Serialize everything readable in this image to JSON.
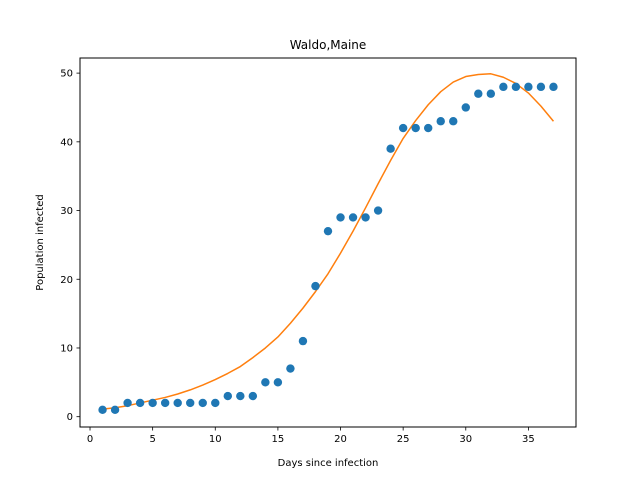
{
  "chart_data": {
    "type": "scatter",
    "title": "Waldo,Maine",
    "xlabel": "Days since infection",
    "ylabel": "Population infected",
    "xlim": [
      -0.8,
      38.8
    ],
    "ylim": [
      -1.5,
      52.2
    ],
    "xticks": [
      0,
      5,
      10,
      15,
      20,
      25,
      30,
      35
    ],
    "yticks": [
      0,
      10,
      20,
      30,
      40,
      50
    ],
    "grid": false,
    "legend": "none",
    "series": [
      {
        "kind": "scatter",
        "color": "#1f77b4",
        "x": [
          1,
          2,
          3,
          4,
          5,
          6,
          7,
          8,
          9,
          10,
          11,
          12,
          13,
          14,
          15,
          16,
          17,
          18,
          19,
          20,
          21,
          22,
          23,
          24,
          25,
          26,
          27,
          28,
          29,
          30,
          31,
          32,
          33,
          34,
          35,
          36,
          37
        ],
        "y": [
          1,
          1,
          2,
          2,
          2,
          2,
          2,
          2,
          2,
          2,
          3,
          3,
          3,
          5,
          5,
          7,
          11,
          19,
          27,
          29,
          29,
          29,
          30,
          39,
          42,
          42,
          42,
          43,
          43,
          45,
          47,
          47,
          48,
          48,
          48,
          48,
          48
        ]
      },
      {
        "kind": "line",
        "color": "#ff7f0e",
        "x": [
          1,
          2,
          3,
          4,
          5,
          6,
          7,
          8,
          9,
          10,
          11,
          12,
          13,
          14,
          15,
          16,
          17,
          18,
          19,
          20,
          21,
          22,
          23,
          24,
          25,
          26,
          27,
          28,
          29,
          30,
          31,
          32,
          33,
          34,
          35,
          36,
          37
        ],
        "y": [
          1.1,
          1.3,
          1.6,
          2.0,
          2.4,
          2.8,
          3.3,
          3.9,
          4.6,
          5.4,
          6.3,
          7.3,
          8.6,
          10.0,
          11.6,
          13.6,
          15.8,
          18.2,
          20.8,
          23.8,
          27.0,
          30.4,
          33.9,
          37.3,
          40.5,
          43.1,
          45.4,
          47.3,
          48.7,
          49.5,
          49.8,
          49.9,
          49.4,
          48.5,
          47.1,
          45.2,
          43.0
        ]
      }
    ]
  }
}
